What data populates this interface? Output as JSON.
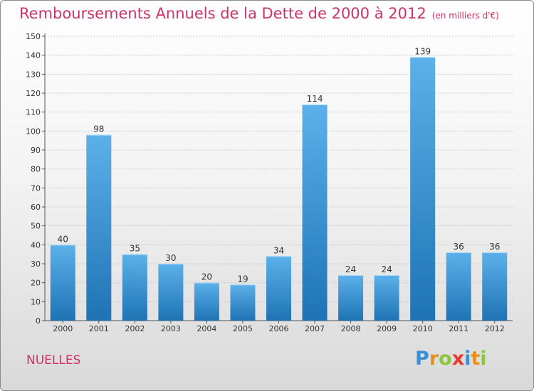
{
  "header": {
    "title": "Remboursements Annuels de la Dette de 2000 à 2012",
    "unit": "(en milliers d'€)"
  },
  "footer": {
    "commune": "NUELLES",
    "logo": "Proxiti"
  },
  "colors": {
    "title": "#cc3366",
    "bar_top": "#5cb1ea",
    "bar_bottom": "#1e73b4",
    "logo_letters": [
      "#3a8fd9",
      "#e8901c",
      "#8cc63f",
      "#e63b2e",
      "#3a8fd9",
      "#e8901c",
      "#8cc63f"
    ]
  },
  "chart_data": {
    "type": "bar",
    "title": "Remboursements Annuels de la Dette de 2000 à 2012",
    "categories": [
      "2000",
      "2001",
      "2002",
      "2003",
      "2004",
      "2005",
      "2006",
      "2007",
      "2008",
      "2009",
      "2010",
      "2011",
      "2012"
    ],
    "values": [
      40,
      98,
      35,
      30,
      20,
      19,
      34,
      114,
      24,
      24,
      139,
      36,
      36
    ],
    "ylim": [
      0,
      150
    ],
    "yticks": [
      0,
      10,
      20,
      30,
      40,
      50,
      60,
      70,
      80,
      90,
      100,
      110,
      120,
      130,
      140,
      150
    ],
    "grid": true,
    "legend": "none"
  }
}
